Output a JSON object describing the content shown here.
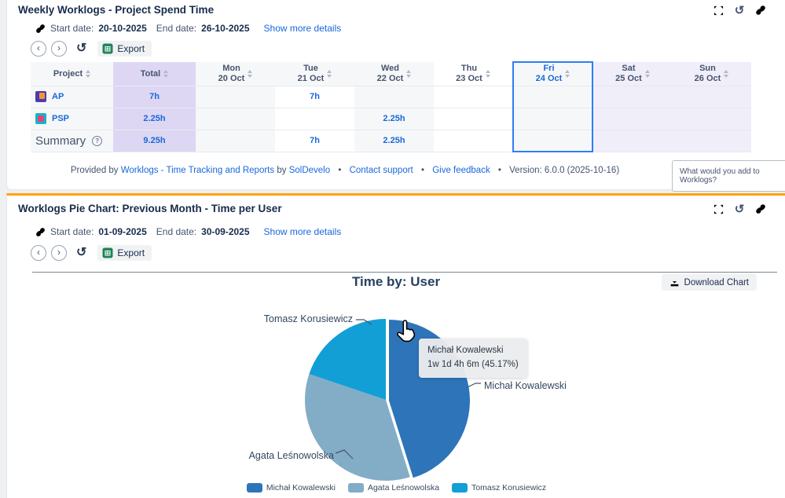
{
  "widget1": {
    "title": "Weekly Worklogs - Project Spend Time",
    "start_date_label": "Start date:",
    "start_date": "20-10-2025",
    "end_date_label": "End date:",
    "end_date": "26-10-2025",
    "details_link": "Show more details",
    "export_label": "Export",
    "table": {
      "columns": [
        {
          "top": "Project",
          "bottom": ""
        },
        {
          "top": "Total",
          "bottom": ""
        },
        {
          "top": "Mon",
          "bottom": "20 Oct"
        },
        {
          "top": "Tue",
          "bottom": "21 Oct"
        },
        {
          "top": "Wed",
          "bottom": "22 Oct"
        },
        {
          "top": "Thu",
          "bottom": "23 Oct"
        },
        {
          "top": "Fri",
          "bottom": "24 Oct"
        },
        {
          "top": "Sat",
          "bottom": "25 Oct"
        },
        {
          "top": "Sun",
          "bottom": "26 Oct"
        }
      ],
      "rows": [
        {
          "project": "AP",
          "total": "7h",
          "days": [
            "",
            "7h",
            "",
            "",
            "",
            "",
            ""
          ]
        },
        {
          "project": "PSP",
          "total": "2.25h",
          "days": [
            "",
            "",
            "2.25h",
            "",
            "",
            "",
            ""
          ]
        }
      ],
      "summary_label": "Summary",
      "summary": {
        "total": "9.25h",
        "days": [
          "",
          "7h",
          "2.25h",
          "",
          "",
          "",
          ""
        ]
      }
    },
    "footer": {
      "provided_by": "Provided by",
      "app_link": "Worklogs - Time Tracking and Reports",
      "by": "by",
      "vendor_link": "SolDevelo",
      "contact_link": "Contact support",
      "feedback_link": "Give feedback",
      "version": "Version: 6.0.0 (2025-10-16)",
      "bullet": "•"
    },
    "feedback_box": "What would you add to Worklogs?"
  },
  "widget2": {
    "title": "Worklogs Pie Chart: Previous Month - Time per User",
    "start_date_label": "Start date:",
    "start_date": "01-09-2025",
    "end_date_label": "End date:",
    "end_date": "30-09-2025",
    "details_link": "Show more details",
    "export_label": "Export",
    "download_button": "Download Chart"
  },
  "chart_data": {
    "type": "pie",
    "title": "Time by: User",
    "legend_position": "bottom",
    "slices": [
      {
        "label": "Michał Kowalewski",
        "percent": 45.17,
        "value": "1w 1d 4h 6m",
        "color": "#2e74b9",
        "hovered": true
      },
      {
        "label": "Agata Leśnowolska",
        "percent": 35.0,
        "color": "#83adc6",
        "hovered": false
      },
      {
        "label": "Tomasz Korusiewicz",
        "percent": 19.83,
        "color": "#129fd6",
        "hovered": false
      }
    ],
    "tooltip": {
      "line1": "Michał Kowalewski",
      "line2": "1w 1d 4h 6m (45.17%)"
    }
  }
}
